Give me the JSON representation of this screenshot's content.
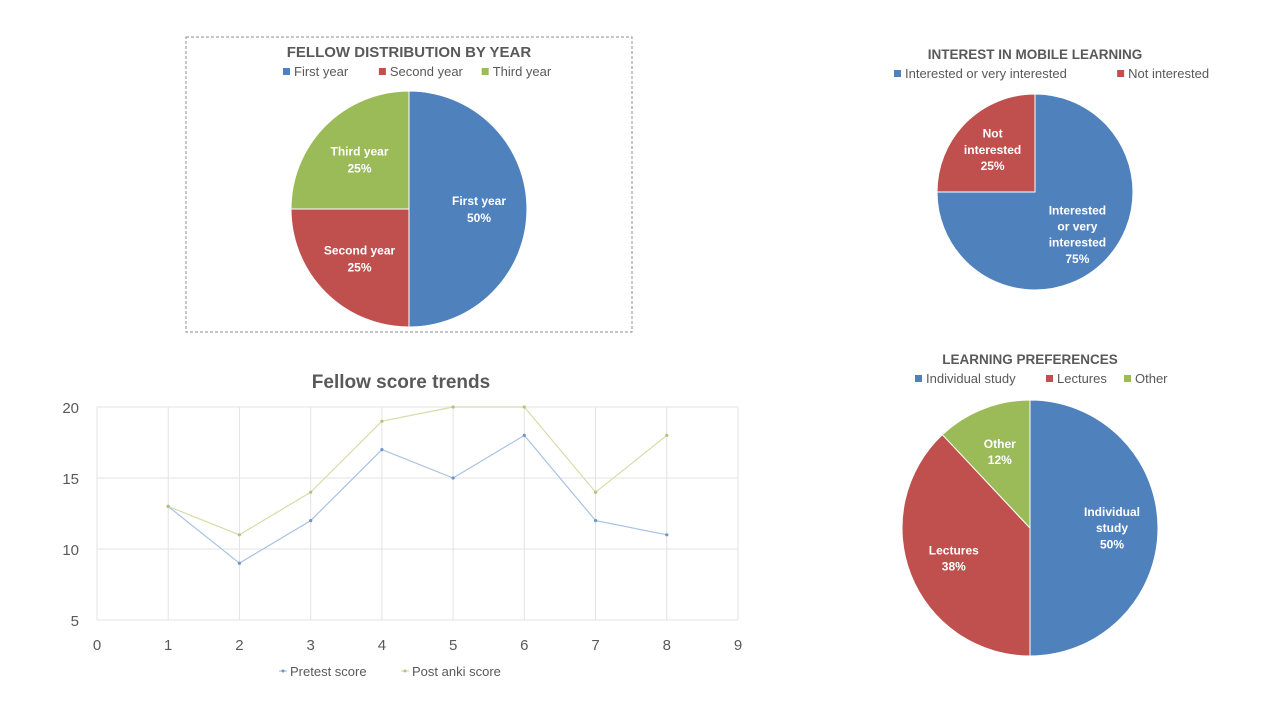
{
  "chart_data": [
    {
      "id": "fellow-distribution",
      "type": "pie",
      "title": "FELLOW DISTRIBUTION BY YEAR",
      "legend": "top",
      "slices": [
        {
          "name": "First year",
          "value": 50,
          "label_lines": [
            "First year",
            "50%"
          ],
          "color": "#4F81BD"
        },
        {
          "name": "Second year",
          "value": 25,
          "label_lines": [
            "Second year",
            "25%"
          ],
          "color": "#C0504D"
        },
        {
          "name": "Third year",
          "value": 25,
          "label_lines": [
            "Third year",
            "25%"
          ],
          "color": "#9BBB59"
        }
      ]
    },
    {
      "id": "mobile-learning",
      "type": "pie",
      "title": "INTEREST IN MOBILE LEARNING",
      "legend": "top",
      "slices": [
        {
          "name": "Interested or very interested",
          "value": 75,
          "label_lines": [
            "Interested",
            "or very",
            "interested",
            "75%"
          ],
          "color": "#4F81BD"
        },
        {
          "name": "Not interested",
          "value": 25,
          "label_lines": [
            "Not",
            "interested",
            "25%"
          ],
          "color": "#C0504D"
        }
      ]
    },
    {
      "id": "learning-preferences",
      "type": "pie",
      "title": "LEARNING PREFERENCES",
      "legend": "top",
      "slices": [
        {
          "name": "Individual study",
          "value": 50,
          "label_lines": [
            "Individual",
            "study",
            "50%"
          ],
          "color": "#4F81BD"
        },
        {
          "name": "Lectures",
          "value": 38,
          "label_lines": [
            "Lectures",
            "38%"
          ],
          "color": "#C0504D"
        },
        {
          "name": "Other",
          "value": 12,
          "label_lines": [
            "Other",
            "12%"
          ],
          "color": "#9BBB59"
        }
      ]
    },
    {
      "id": "score-trends",
      "type": "line",
      "title": "Fellow score trends",
      "xlabel": "",
      "ylabel": "",
      "xlim": [
        0,
        9
      ],
      "ylim": [
        5,
        20
      ],
      "xticks": [
        0,
        1,
        2,
        3,
        4,
        5,
        6,
        7,
        8,
        9
      ],
      "yticks": [
        5,
        10,
        15,
        20
      ],
      "grid": true,
      "legend": "bottom",
      "x": [
        1,
        2,
        3,
        4,
        5,
        6,
        7,
        8
      ],
      "series": [
        {
          "name": "Pretest score",
          "values": [
            13,
            9,
            12,
            17,
            15,
            18,
            12,
            11
          ],
          "color": "#A9C2E4"
        },
        {
          "name": "Post anki score",
          "values": [
            13,
            11,
            14,
            19,
            20,
            20,
            14,
            18
          ],
          "color": "#D7DCA9"
        }
      ]
    }
  ]
}
